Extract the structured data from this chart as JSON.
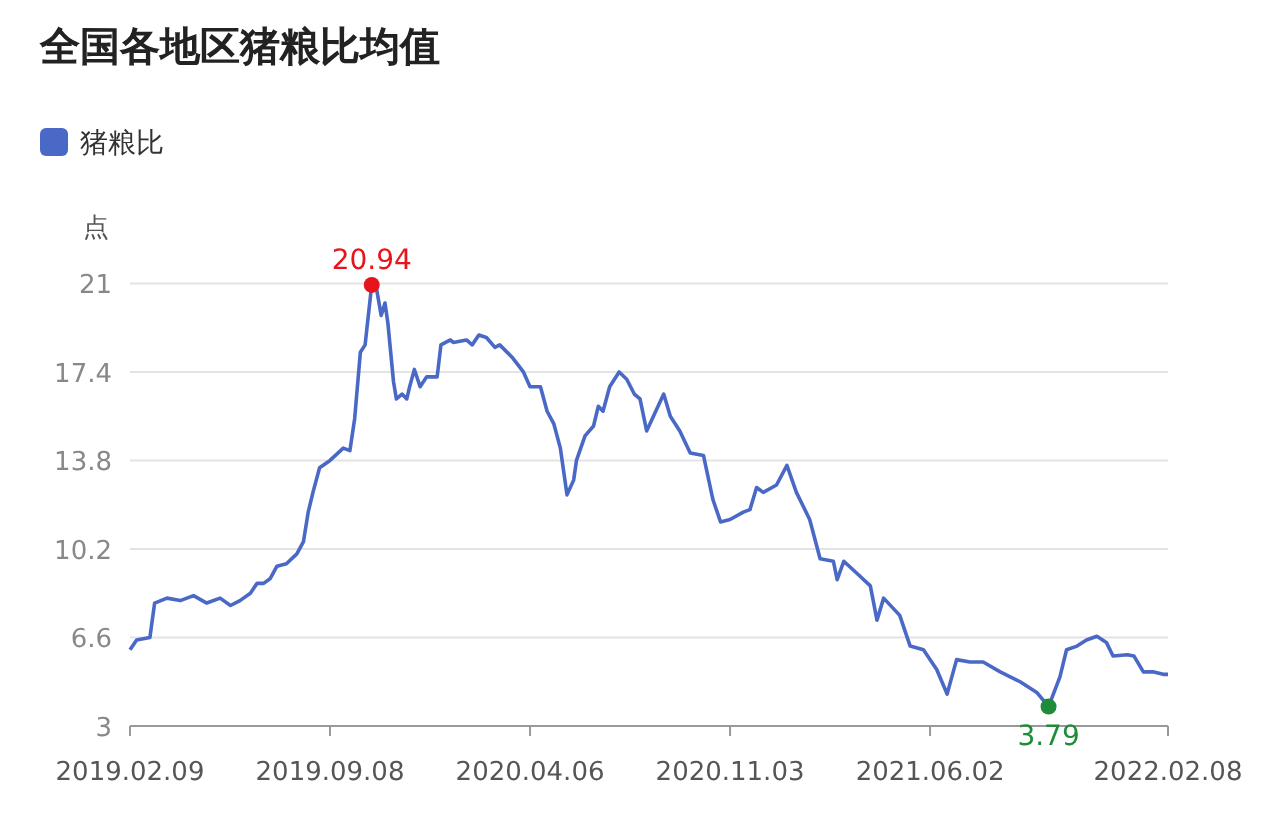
{
  "chart_data": {
    "type": "line",
    "title": "全国各地区猪粮比均值",
    "ylabel": "点",
    "legend": "top left",
    "grid": "y",
    "marker": "none",
    "line_style": "solid",
    "xlim": [
      "2019-02-09",
      "2022-02-08"
    ],
    "ylim": [
      3,
      21
    ],
    "yticks": [
      3,
      6.6,
      10.2,
      13.8,
      17.4,
      21
    ],
    "xticks": [
      {
        "value": "2019-02-09",
        "label": "2019.02.09"
      },
      {
        "value": "2019-09-08",
        "label": "2019.09.08"
      },
      {
        "value": "2020-04-06",
        "label": "2020.04.06"
      },
      {
        "value": "2020-11-03",
        "label": "2020.11.03"
      },
      {
        "value": "2021-06-02",
        "label": "2021.06.02"
      },
      {
        "value": "2022-02-08",
        "label": "2022.02.08"
      }
    ],
    "annotations": [
      {
        "text": "20.94",
        "x": "2019-10-22",
        "y": 20.94
      },
      {
        "text": "3.79",
        "x": "2021-10-05",
        "y": 3.79
      }
    ],
    "series": [
      {
        "name": "猪粮比",
        "color": "#4a68c6",
        "x": [
          "2019-02-09",
          "2019-02-16",
          "2019-03-02",
          "2019-03-07",
          "2019-03-20",
          "2019-04-03",
          "2019-04-17",
          "2019-05-01",
          "2019-05-15",
          "2019-05-26",
          "2019-06-05",
          "2019-06-16",
          "2019-06-23",
          "2019-06-30",
          "2019-07-07",
          "2019-07-14",
          "2019-07-24",
          "2019-08-04",
          "2019-08-11",
          "2019-08-16",
          "2019-08-21",
          "2019-08-28",
          "2019-09-08",
          "2019-09-22",
          "2019-09-29",
          "2019-10-04",
          "2019-10-10",
          "2019-10-15",
          "2019-10-22",
          "2019-10-27",
          "2019-11-01",
          "2019-11-05",
          "2019-11-08",
          "2019-11-14",
          "2019-11-17",
          "2019-11-23",
          "2019-11-28",
          "2019-12-01",
          "2019-12-06",
          "2019-12-12",
          "2019-12-19",
          "2019-12-30",
          "2020-01-03",
          "2020-01-13",
          "2020-01-16",
          "2020-01-30",
          "2020-02-05",
          "2020-02-12",
          "2020-02-20",
          "2020-02-29",
          "2020-03-05",
          "2020-03-18",
          "2020-03-30",
          "2020-04-06",
          "2020-04-17",
          "2020-04-24",
          "2020-05-01",
          "2020-05-08",
          "2020-05-15",
          "2020-05-22",
          "2020-05-25",
          "2020-06-03",
          "2020-06-12",
          "2020-06-17",
          "2020-06-22",
          "2020-06-29",
          "2020-07-09",
          "2020-07-17",
          "2020-07-25",
          "2020-07-31",
          "2020-08-07",
          "2020-08-25",
          "2020-09-01",
          "2020-09-11",
          "2020-09-22",
          "2020-10-06",
          "2020-10-16",
          "2020-10-24",
          "2020-11-03",
          "2020-11-17",
          "2020-11-24",
          "2020-12-01",
          "2020-12-08",
          "2020-12-22",
          "2021-01-02",
          "2021-01-12",
          "2021-01-26",
          "2021-02-06",
          "2021-02-20",
          "2021-02-24",
          "2021-03-03",
          "2021-03-17",
          "2021-03-31",
          "2021-04-07",
          "2021-04-14",
          "2021-05-01",
          "2021-05-12",
          "2021-05-26",
          "2021-06-09",
          "2021-06-20",
          "2021-06-30",
          "2021-07-14",
          "2021-07-28",
          "2021-08-15",
          "2021-09-05",
          "2021-09-23",
          "2021-10-05",
          "2021-10-17",
          "2021-10-24",
          "2021-11-04",
          "2021-11-14",
          "2021-11-25",
          "2021-12-05",
          "2021-12-12",
          "2021-12-27",
          "2022-01-03",
          "2022-01-13",
          "2022-01-24",
          "2022-02-03",
          "2022-02-08"
        ],
        "values": [
          6.1,
          6.5,
          6.6,
          8.0,
          8.2,
          8.1,
          8.3,
          8.0,
          8.2,
          7.9,
          8.1,
          8.4,
          8.8,
          8.8,
          9.0,
          9.5,
          9.6,
          10.0,
          10.5,
          11.7,
          12.5,
          13.5,
          13.8,
          14.3,
          14.2,
          15.5,
          18.2,
          18.5,
          20.94,
          20.8,
          19.7,
          20.2,
          19.4,
          17.0,
          16.3,
          16.5,
          16.3,
          16.8,
          17.5,
          16.8,
          17.2,
          17.2,
          18.5,
          18.7,
          18.6,
          18.7,
          18.5,
          18.9,
          18.8,
          18.4,
          18.5,
          18.0,
          17.4,
          16.8,
          16.8,
          15.8,
          15.3,
          14.3,
          12.4,
          13.0,
          13.8,
          14.8,
          15.2,
          16.0,
          15.8,
          16.8,
          17.4,
          17.1,
          16.5,
          16.3,
          15.0,
          16.5,
          15.6,
          15.0,
          14.1,
          14.0,
          12.2,
          11.3,
          11.4,
          11.7,
          11.8,
          12.7,
          12.5,
          12.8,
          13.6,
          12.5,
          11.4,
          9.8,
          9.7,
          8.95,
          9.7,
          9.2,
          8.7,
          7.3,
          8.2,
          7.5,
          6.25,
          6.1,
          5.3,
          4.3,
          5.7,
          5.6,
          5.6,
          5.2,
          4.8,
          4.35,
          3.79,
          5.0,
          6.1,
          6.25,
          6.5,
          6.65,
          6.4,
          5.85,
          5.9,
          5.85,
          5.2,
          5.2,
          5.1,
          5.1
        ]
      }
    ]
  }
}
